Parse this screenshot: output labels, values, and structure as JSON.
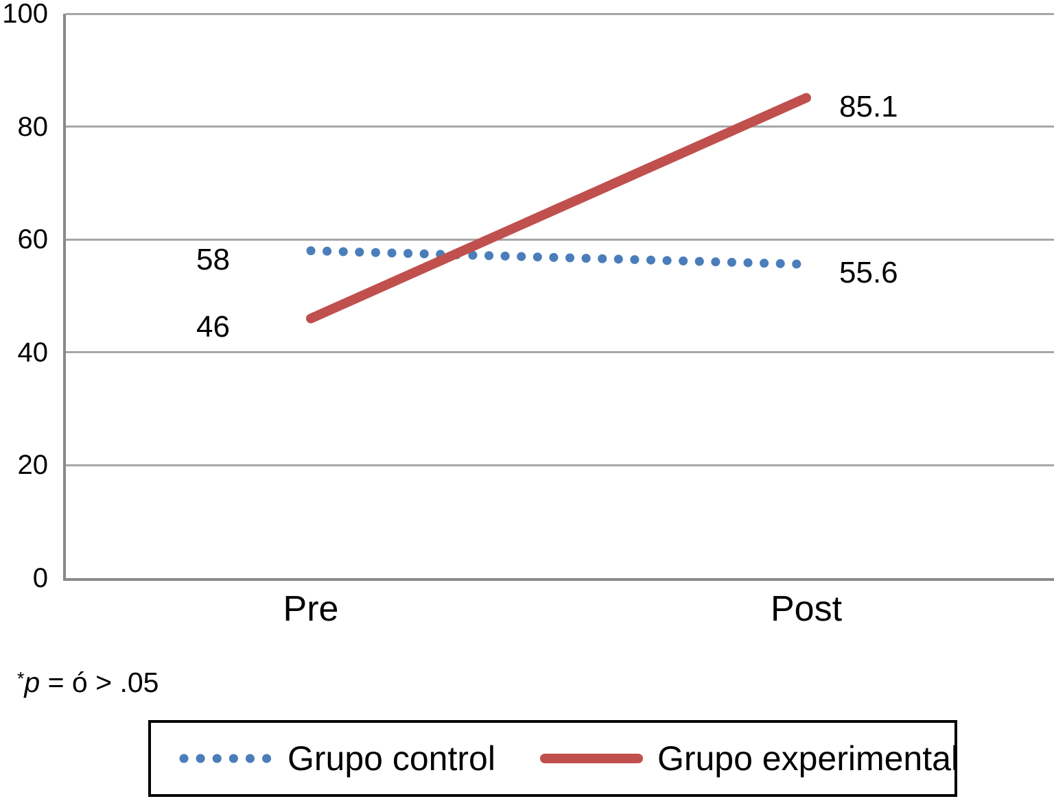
{
  "chart_data": {
    "type": "line",
    "categories": [
      "Pre",
      "Post"
    ],
    "series": [
      {
        "name": "Grupo control",
        "values": [
          58,
          55.6
        ],
        "data_labels": [
          "58",
          "55.6"
        ],
        "color": "#4a7ebb",
        "line_style": "dotted"
      },
      {
        "name": "Grupo experimental",
        "values": [
          46,
          85.1
        ],
        "data_labels": [
          "46",
          "85.1"
        ],
        "color": "#c0504d",
        "line_style": "solid"
      }
    ],
    "title": "",
    "xlabel": "",
    "ylabel": "",
    "ylim": [
      0,
      100
    ],
    "yticks": [
      0,
      20,
      40,
      60,
      80,
      100
    ],
    "grid": true,
    "legend_position": "bottom-boxed",
    "annotations": {
      "footnote": "*p = ó > .05"
    }
  },
  "footnote": {
    "asterisk": "*",
    "p_symbol": "p",
    "rest": " = ó > .05"
  }
}
